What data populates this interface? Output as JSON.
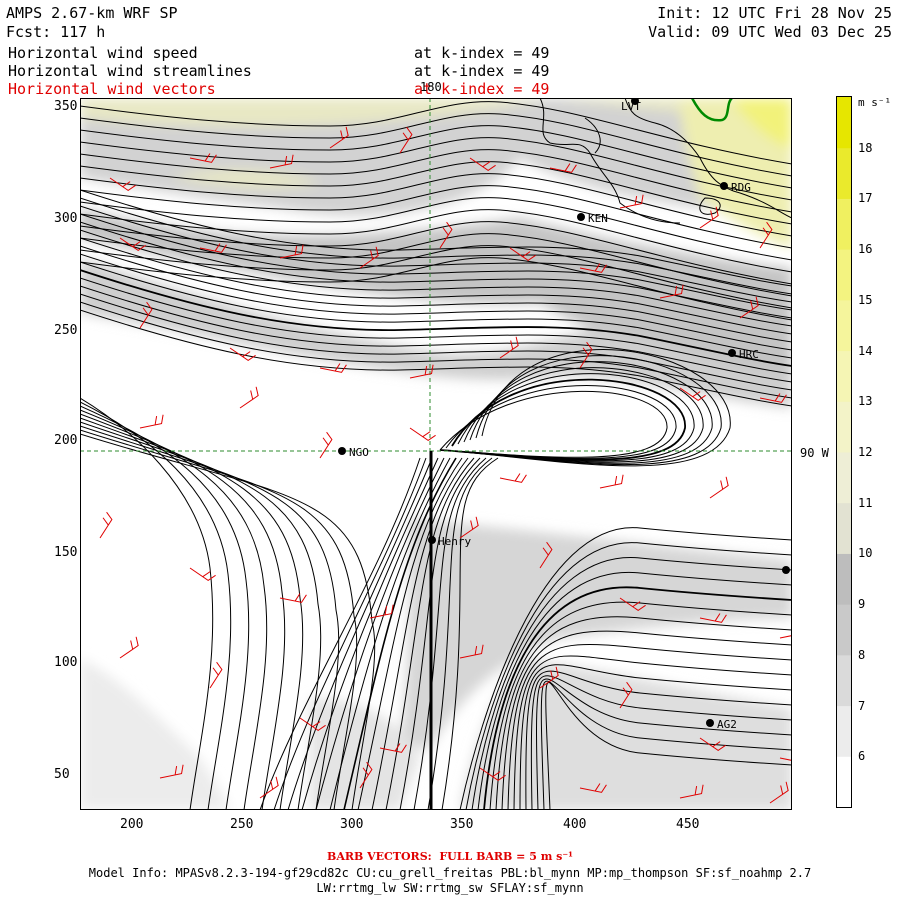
{
  "header": {
    "model_title": "AMPS 2.67-km WRF SP",
    "forecast": "Fcst: 117 h",
    "init": "Init: 12 UTC Fri 28 Nov 25",
    "valid": "Valid: 09 UTC Wed 03 Dec 25",
    "fields": [
      {
        "name": "Horizontal wind speed",
        "level": "at k-index = 49",
        "color": "#000000"
      },
      {
        "name": "Horizontal wind streamlines",
        "level": "at k-index = 49",
        "color": "#000000"
      },
      {
        "name": "Horizontal wind vectors",
        "level": "at k-index = 49",
        "color": "#e00000"
      }
    ]
  },
  "map": {
    "x_ticks": [
      "200",
      "250",
      "300",
      "350",
      "400",
      "450"
    ],
    "y_ticks": [
      "50",
      "100",
      "150",
      "200",
      "250",
      "300",
      "350"
    ],
    "meridian_label": "180",
    "parallel_label": "90 W",
    "stations": [
      {
        "id": "LVT",
        "label": "LVT"
      },
      {
        "id": "RDG",
        "label": "RDG"
      },
      {
        "id": "KEN",
        "label": "KEN"
      },
      {
        "id": "HRC",
        "label": "HRC"
      },
      {
        "id": "NGO",
        "label": "NGO"
      },
      {
        "id": "Henry",
        "label": "Henry"
      },
      {
        "id": "AG2",
        "label": "AG2"
      },
      {
        "id": "E",
        "label": ""
      }
    ]
  },
  "colorbar": {
    "unit": "m s⁻¹",
    "levels": [
      "6",
      "7",
      "8",
      "9",
      "10",
      "11",
      "12",
      "13",
      "14",
      "15",
      "16",
      "17",
      "18"
    ],
    "colors": [
      "#ffffff",
      "#ececec",
      "#dadada",
      "#c9c9c9",
      "#bdbdbd",
      "#e2e2d2",
      "#eeeed6",
      "#f3f3c8",
      "#f5f5b4",
      "#f5f59c",
      "#f3f380",
      "#f0f060",
      "#eaea2c",
      "#e6e600"
    ]
  },
  "footer": {
    "barb_note": "BARB VECTORS:  FULL BARB = 5 m s⁻¹",
    "model_info": "Model Info: MPASv8.2.3-194-gf29cd82c CU:cu_grell_freitas PBL:bl_mynn MP:mp_thompson SF:sf_noahmp 2.7",
    "model_info_2": "LW:rrtmg_lw SW:rrtmg_sw SFLAY:sf_mynn"
  }
}
